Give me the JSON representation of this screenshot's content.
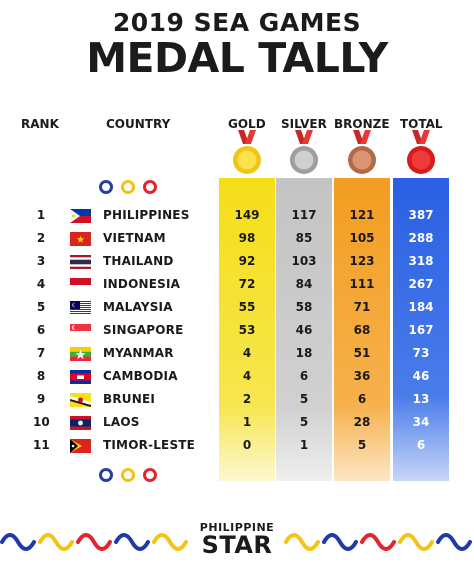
{
  "header": {
    "title_line1": "2019 SEA GAMES",
    "title_line2": "MEDAL TALLY"
  },
  "columns": {
    "rank": "RANK",
    "country": "COUNTRY",
    "gold": "GOLD",
    "silver": "SILVER",
    "bronze": "BRONZE",
    "total": "TOTAL"
  },
  "colors": {
    "gold_column": "#f5de17",
    "silver_column": "#c8c8c8",
    "bronze_column": "#f3a12a",
    "total_column": "#2b63e5",
    "ring_blue": "#2b3f9e",
    "ring_yellow": "#f3c317",
    "ring_red": "#e1262d",
    "medal_ribbon": "#d32f2f"
  },
  "icons": [
    "gold-medal-icon",
    "silver-medal-icon",
    "bronze-medal-icon",
    "total-medal-icon",
    "rings-icon",
    "flag-icon"
  ],
  "rows": [
    {
      "rank": "1",
      "country": "PHILIPPINES",
      "gold": "149",
      "silver": "117",
      "bronze": "121",
      "total": "387"
    },
    {
      "rank": "2",
      "country": "VIETNAM",
      "gold": "98",
      "silver": "85",
      "bronze": "105",
      "total": "288"
    },
    {
      "rank": "3",
      "country": "THAILAND",
      "gold": "92",
      "silver": "103",
      "bronze": "123",
      "total": "318"
    },
    {
      "rank": "4",
      "country": "INDONESIA",
      "gold": "72",
      "silver": "84",
      "bronze": "111",
      "total": "267"
    },
    {
      "rank": "5",
      "country": "MALAYSIA",
      "gold": "55",
      "silver": "58",
      "bronze": "71",
      "total": "184"
    },
    {
      "rank": "6",
      "country": "SINGAPORE",
      "gold": "53",
      "silver": "46",
      "bronze": "68",
      "total": "167"
    },
    {
      "rank": "7",
      "country": "MYANMAR",
      "gold": "4",
      "silver": "18",
      "bronze": "51",
      "total": "73"
    },
    {
      "rank": "8",
      "country": "CAMBODIA",
      "gold": "4",
      "silver": "6",
      "bronze": "36",
      "total": "46"
    },
    {
      "rank": "9",
      "country": "BRUNEI",
      "gold": "2",
      "silver": "5",
      "bronze": "6",
      "total": "13"
    },
    {
      "rank": "10",
      "country": "LAOS",
      "gold": "1",
      "silver": "5",
      "bronze": "28",
      "total": "34"
    },
    {
      "rank": "11",
      "country": "TIMOR-LESTE",
      "gold": "0",
      "silver": "1",
      "bronze": "5",
      "total": "6"
    }
  ],
  "footer": {
    "logo_line1": "PHILIPPINE",
    "logo_line2": "STAR"
  }
}
